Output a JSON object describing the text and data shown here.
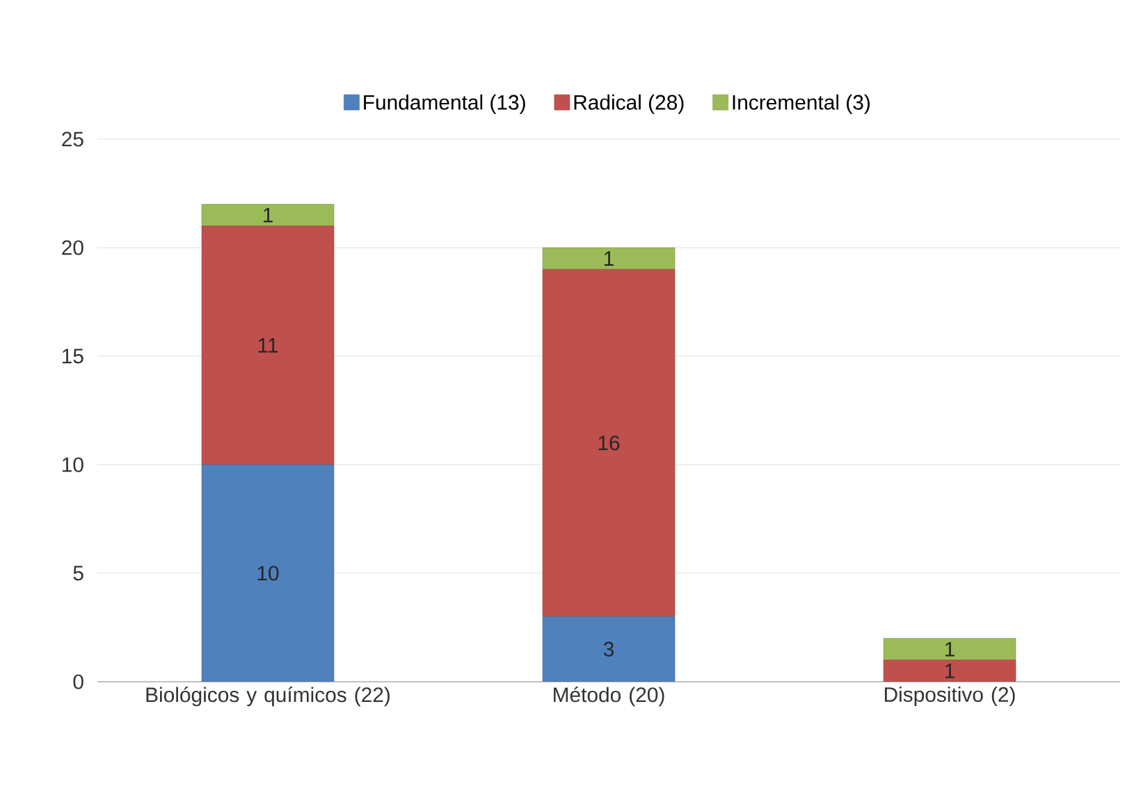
{
  "chart_data": {
    "type": "bar",
    "stacked": true,
    "categories": [
      "Biológicos y químicos (22)",
      "Método (20)",
      "Dispositivo (2)"
    ],
    "series": [
      {
        "name": "Fundamental (13)",
        "color": "#4f81bd",
        "values": [
          10,
          3,
          0
        ],
        "value_labels": [
          "10",
          "3",
          null
        ]
      },
      {
        "name": "Radical (28)",
        "color": "#c0504d",
        "values": [
          11,
          16,
          1
        ],
        "value_labels": [
          "11",
          "16",
          "1"
        ]
      },
      {
        "name": "Incremental (3)",
        "color": "#9bbb59",
        "values": [
          1,
          1,
          1
        ],
        "value_labels": [
          "1",
          "1",
          "1"
        ]
      }
    ],
    "ylim": [
      0,
      25
    ],
    "yticks": [
      0,
      5,
      10,
      15,
      20,
      25
    ],
    "grid": "y",
    "legend": "top"
  }
}
